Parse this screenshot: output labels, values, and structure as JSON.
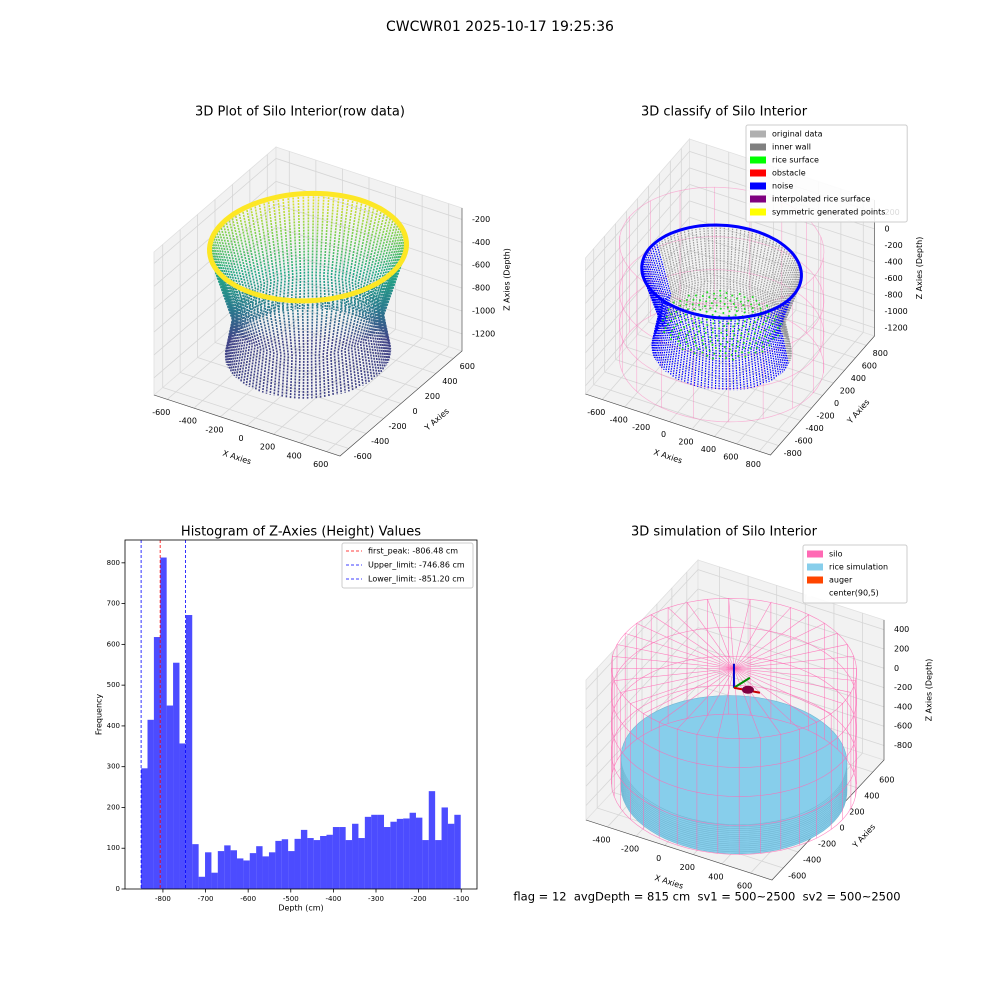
{
  "title": "CWCWR01 2025-10-17 19:25:36",
  "footer": "flag = 12  avgDepth = 815 cm  sv1 = 500~2500  sv2 = 500~2500",
  "chart_data": [
    {
      "type": "scatter3d",
      "title": "3D Plot of Silo Interior(row data)",
      "xlabel": "X Axies",
      "ylabel": "Y Axies",
      "zlabel": "Z Axies (Depth)",
      "xlim": [
        -700,
        700
      ],
      "ylim": [
        -700,
        700
      ],
      "zlim": [
        -1350,
        -100
      ],
      "xticks": [
        -600,
        -400,
        -200,
        0,
        200,
        400,
        600
      ],
      "yticks": [
        -600,
        -400,
        -200,
        0,
        200,
        400,
        600
      ],
      "zticks": [
        -200,
        -400,
        -600,
        -800,
        -1000,
        -1200
      ]
    },
    {
      "type": "scatter3d",
      "title": "3D classify of Silo Interior",
      "xlabel": "X Axies",
      "ylabel": "Y Axies",
      "zlabel": "Z Axies (Depth)",
      "xlim": [
        -750,
        900
      ],
      "ylim": [
        -950,
        950
      ],
      "zlim": [
        -1300,
        350
      ],
      "xticks": [
        -600,
        -400,
        -200,
        0,
        200,
        400,
        600,
        800
      ],
      "yticks": [
        -800,
        -600,
        -400,
        -200,
        0,
        200,
        400,
        600,
        800
      ],
      "zticks": [
        200,
        0,
        -200,
        -400,
        -600,
        -800,
        -1000,
        -1200
      ],
      "legend": "upper right",
      "series": [
        {
          "name": "original data",
          "color": "#b0b0b0"
        },
        {
          "name": "inner wall",
          "color": "#808080"
        },
        {
          "name": "rice surface",
          "color": "#00ff00"
        },
        {
          "name": "obstacle",
          "color": "#ff0000"
        },
        {
          "name": "noise",
          "color": "#0000ff"
        },
        {
          "name": "interpolated rice surface",
          "color": "#800080"
        },
        {
          "name": "symmetric generated points",
          "color": "#ffff00"
        }
      ]
    },
    {
      "type": "histogram",
      "title": "Histogram of Z-Axies (Height) Values",
      "xlabel": "Depth (cm)",
      "ylabel": "Frequency",
      "color": "#0000ff",
      "alpha": 0.7,
      "bins": [
        -851.2,
        -836.2,
        -821.2,
        -806.2,
        -791.2,
        -776.2,
        -761.2,
        -746.2,
        -731.2,
        -716.2,
        -701.2,
        -686.2,
        -671.2,
        -656.2,
        -641.2,
        -626.2,
        -611.2,
        -596.2,
        -581.2,
        -566.2,
        -551.2,
        -536.2,
        -521.2,
        -506.2,
        -491.2,
        -476.2,
        -461.2,
        -446.2,
        -431.2,
        -416.2,
        -401.2,
        -386.2,
        -371.2,
        -356.2,
        -341.2,
        -326.2,
        -311.2,
        -296.2,
        -281.2,
        -266.2,
        -251.2,
        -236.2,
        -221.2,
        -206.2,
        -191.2,
        -176.2,
        -161.2,
        -146.2,
        -131.2,
        -116.2,
        -101.2
      ],
      "counts": [
        296,
        415,
        618,
        813,
        450,
        555,
        357,
        672,
        110,
        30,
        90,
        40,
        93,
        107,
        95,
        75,
        70,
        88,
        105,
        80,
        90,
        118,
        122,
        93,
        123,
        145,
        125,
        120,
        130,
        133,
        152,
        152,
        120,
        160,
        125,
        177,
        182,
        182,
        152,
        165,
        172,
        173,
        187,
        175,
        120,
        240,
        120,
        200,
        160,
        182
      ],
      "xlim": [
        -889,
        -63
      ],
      "ylim": [
        0,
        856
      ],
      "xticks": [
        -800,
        -700,
        -600,
        -500,
        -400,
        -300,
        -200,
        -100
      ],
      "yticks": [
        0,
        100,
        200,
        300,
        400,
        500,
        600,
        700,
        800
      ],
      "legend": "upper right",
      "lines": [
        {
          "name": "first_peak: -806.48 cm",
          "value": -806.48,
          "color": "#ff0000"
        },
        {
          "name": "Upper_limit: -746.86 cm",
          "value": -746.86,
          "color": "#0000ff"
        },
        {
          "name": "Lower_limit: -851.20 cm",
          "value": -851.2,
          "color": "#0000ff"
        }
      ]
    },
    {
      "type": "surface3d",
      "title": "3D simulation of Silo Interior",
      "xlabel": "X Axies",
      "ylabel": "Y Axies",
      "zlabel": "Z Axies (Depth)",
      "xlim": [
        -550,
        750
      ],
      "ylim": [
        -750,
        750
      ],
      "zlim": [
        -950,
        500
      ],
      "xticks": [
        -400,
        -200,
        0,
        200,
        400,
        600
      ],
      "yticks": [
        -600,
        -400,
        -200,
        0,
        200,
        400,
        600
      ],
      "zticks": [
        400,
        200,
        0,
        -200,
        -400,
        -600,
        -800
      ],
      "legend": "upper right",
      "series": [
        {
          "name": "silo",
          "color": "#ff69b4"
        },
        {
          "name": "rice simulation",
          "color": "#87ceeb"
        },
        {
          "name": "auger",
          "color": "#ff4500"
        },
        {
          "name": "center(90,5)",
          "color": "#ffffff"
        }
      ]
    }
  ]
}
